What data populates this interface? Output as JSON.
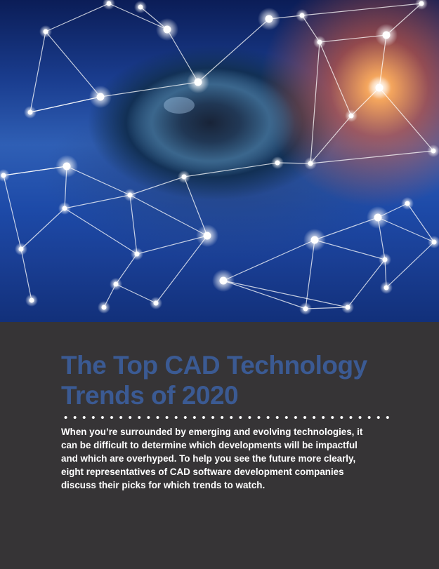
{
  "hero": {
    "image_name": "eye-technology-network-image"
  },
  "article": {
    "title": "The Top CAD Technology Trends of 2020",
    "intro": "When you’re surrounded by emerging and evolving technologies, it can be difficult to determine which developments will be impactful and which are overhyped. To help you see the future more clearly, eight representatives of CAD software development companies discuss their picks for which trends to watch."
  },
  "colors": {
    "background": "#363436",
    "title": "#3b5a93",
    "body_text": "#ffffff",
    "divider_dots": "#ffffff"
  }
}
